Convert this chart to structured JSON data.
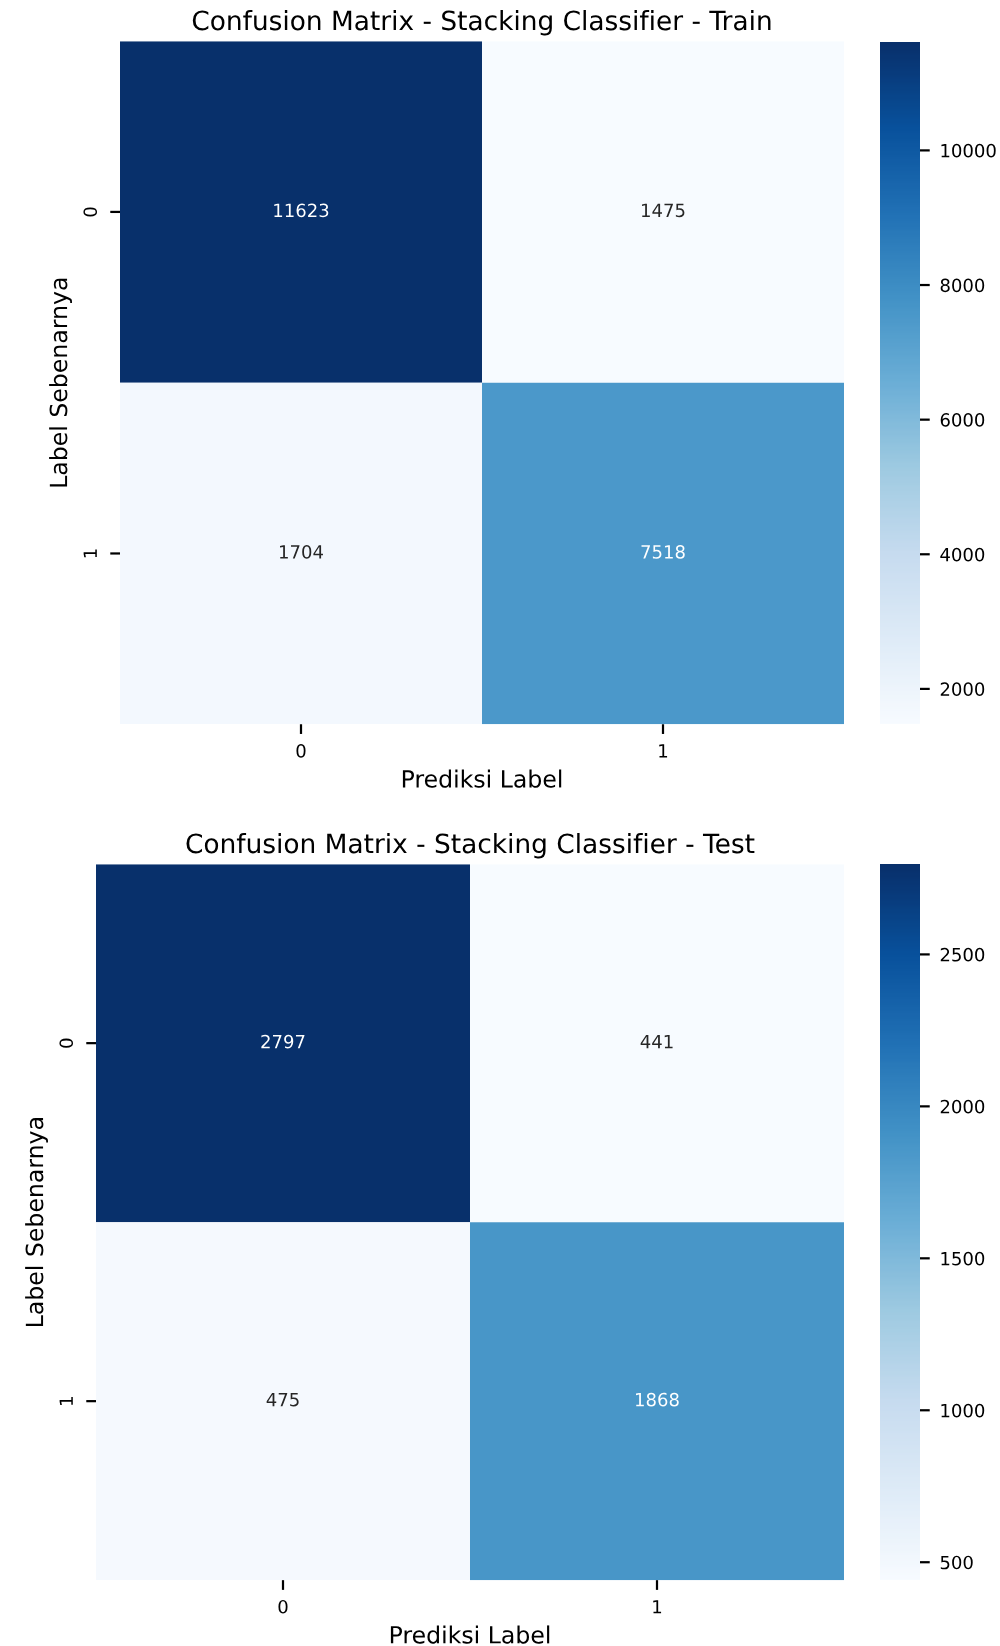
{
  "chart_data": [
    {
      "type": "heatmap",
      "title": "Confusion Matrix - Stacking Classifier - Train",
      "xlabel": "Prediksi Label",
      "ylabel": "Label Sebenarnya",
      "categories": [
        "0",
        "1"
      ],
      "y_categories": [
        "0",
        "1"
      ],
      "cells": [
        [
          11623,
          1475
        ],
        [
          1704,
          7518
        ]
      ],
      "clim": [
        1475,
        11623
      ],
      "cticks": [
        2000,
        4000,
        6000,
        8000,
        10000
      ],
      "data_labels": true
    },
    {
      "type": "heatmap",
      "title": "Confusion Matrix - Stacking Classifier - Test",
      "xlabel": "Prediksi Label",
      "ylabel": "Label Sebenarnya",
      "categories": [
        "0",
        "1"
      ],
      "y_categories": [
        "0",
        "1"
      ],
      "cells": [
        [
          2797,
          441
        ],
        [
          475,
          1868
        ]
      ],
      "clim": [
        441,
        2797
      ],
      "cticks": [
        500,
        1000,
        1500,
        2000,
        2500
      ],
      "data_labels": true
    }
  ]
}
